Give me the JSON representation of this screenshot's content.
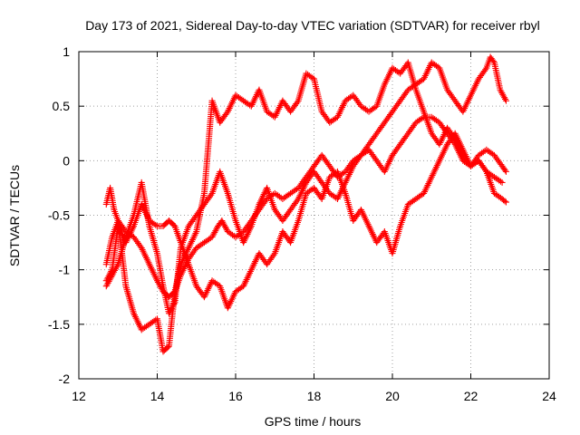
{
  "chart_data": {
    "type": "scatter",
    "title": "Day 173 of 2021, Sidereal Day-to-day VTEC variation (SDTVAR) for receiver rbyl",
    "xlabel": "GPS time / hours",
    "ylabel": "SDTVAR / TECUs",
    "xlim": [
      12,
      24
    ],
    "ylim": [
      -2,
      1
    ],
    "xticks": [
      12,
      14,
      16,
      18,
      20,
      22,
      24
    ],
    "yticks": [
      -2,
      -1.5,
      -1,
      -0.5,
      0,
      0.5,
      1
    ],
    "xtick_labels": [
      "12",
      "14",
      "16",
      "18",
      "20",
      "22",
      "24"
    ],
    "ytick_labels": [
      "-2",
      "-1.5",
      "-1",
      "-0.5",
      "0",
      "0.5",
      "1"
    ],
    "grid": true,
    "marker": "+",
    "color": "#ff0000",
    "series": [
      {
        "x": [
          12.7,
          12.85,
          13.0,
          13.2,
          13.4,
          13.6,
          13.8,
          14.0,
          14.15,
          14.3,
          14.45,
          14.6,
          14.8,
          15.0,
          15.2,
          15.4,
          15.55,
          15.65,
          15.8,
          16.0,
          16.2,
          16.4,
          16.6,
          16.8,
          17.0,
          17.2,
          17.4,
          17.6,
          17.8,
          18.0,
          18.2,
          18.4,
          18.6,
          18.8,
          19.0,
          19.2,
          19.4,
          19.6,
          19.8,
          20.0,
          20.2,
          20.4,
          20.6,
          20.8,
          21.0,
          21.2,
          21.4,
          21.6,
          21.8,
          22.0,
          22.2,
          22.4,
          22.5,
          22.6,
          22.75,
          22.9
        ],
        "y": [
          -0.95,
          -0.7,
          -0.55,
          -0.65,
          -0.7,
          -0.8,
          -0.95,
          -1.1,
          -1.2,
          -1.25,
          -1.2,
          -1.05,
          -0.9,
          -0.8,
          -0.75,
          -0.7,
          -0.6,
          -0.55,
          -0.65,
          -0.7,
          -0.65,
          -0.55,
          -0.45,
          -0.35,
          -0.3,
          -0.35,
          -0.3,
          -0.25,
          -0.15,
          -0.05,
          0.05,
          -0.05,
          -0.15,
          -0.1,
          0.0,
          0.05,
          0.15,
          0.25,
          0.35,
          0.45,
          0.55,
          0.65,
          0.7,
          0.75,
          0.9,
          0.85,
          0.65,
          0.55,
          0.45,
          0.6,
          0.75,
          0.85,
          0.95,
          0.9,
          0.65,
          0.55
        ]
      },
      {
        "x": [
          12.7,
          12.85,
          13.0,
          13.2,
          13.4,
          13.6,
          13.8,
          14.0,
          14.15,
          14.3,
          14.45,
          14.6,
          14.8,
          15.0,
          15.2,
          15.4,
          15.6,
          15.8,
          16.0,
          16.2,
          16.4,
          16.6,
          16.8,
          17.0,
          17.2,
          17.4,
          17.6,
          17.8,
          18.0,
          18.2,
          18.4,
          18.6,
          18.8,
          19.0,
          19.2,
          19.4,
          19.6,
          19.8,
          20.0,
          20.2,
          20.4,
          20.6,
          20.8,
          21.0,
          21.2,
          21.4,
          21.6,
          21.8,
          22.0,
          22.2,
          22.4,
          22.6,
          22.8,
          22.9
        ],
        "y": [
          -1.15,
          -1.05,
          -0.95,
          -0.7,
          -0.5,
          -0.2,
          -0.6,
          -0.85,
          -1.15,
          -1.4,
          -1.3,
          -0.8,
          -0.6,
          -0.5,
          -0.4,
          -0.3,
          -0.1,
          -0.3,
          -0.55,
          -0.75,
          -0.6,
          -0.4,
          -0.25,
          -0.45,
          -0.55,
          -0.45,
          -0.35,
          -0.2,
          -0.1,
          -0.2,
          -0.3,
          -0.35,
          -0.2,
          -0.05,
          0.05,
          0.1,
          0.0,
          -0.1,
          0.05,
          0.15,
          0.25,
          0.35,
          0.4,
          0.4,
          0.35,
          0.25,
          0.15,
          0.0,
          -0.05,
          0.05,
          0.1,
          0.05,
          -0.05,
          -0.1
        ]
      },
      {
        "x": [
          12.7,
          12.8,
          12.9,
          13.0,
          13.2,
          13.4,
          13.6,
          13.8,
          14.0,
          14.15,
          14.3,
          14.45,
          14.6,
          14.8,
          15.0,
          15.2,
          15.4,
          15.6,
          15.8,
          16.0,
          16.2,
          16.4,
          16.6,
          16.8,
          17.0,
          17.2,
          17.4,
          17.6,
          17.8,
          18.0,
          18.2,
          18.4,
          18.6,
          18.8,
          19.0,
          19.2,
          19.4,
          19.6,
          19.8,
          20.0,
          20.2,
          20.4,
          20.6,
          20.8,
          21.0,
          21.2,
          21.4,
          21.6,
          21.8,
          22.0,
          22.2,
          22.4,
          22.6,
          22.8
        ],
        "y": [
          -0.4,
          -0.25,
          -0.45,
          -0.55,
          -1.15,
          -1.4,
          -1.55,
          -1.5,
          -1.45,
          -1.75,
          -1.7,
          -1.2,
          -0.95,
          -0.8,
          -0.65,
          -0.3,
          0.55,
          0.35,
          0.45,
          0.6,
          0.55,
          0.5,
          0.65,
          0.45,
          0.4,
          0.55,
          0.45,
          0.55,
          0.8,
          0.75,
          0.45,
          0.35,
          0.4,
          0.55,
          0.6,
          0.5,
          0.45,
          0.5,
          0.7,
          0.85,
          0.8,
          0.9,
          0.65,
          0.45,
          0.25,
          0.15,
          0.3,
          0.2,
          0.05,
          -0.05,
          0.0,
          -0.1,
          -0.15,
          -0.2
        ]
      },
      {
        "x": [
          12.7,
          12.85,
          13.0,
          13.2,
          13.4,
          13.6,
          13.8,
          14.0,
          14.15,
          14.3,
          14.45,
          14.6,
          14.8,
          15.0,
          15.2,
          15.4,
          15.6,
          15.8,
          16.0,
          16.2,
          16.4,
          16.6,
          16.8,
          17.0,
          17.2,
          17.4,
          17.6,
          17.8,
          18.0,
          18.2,
          18.4,
          18.6,
          18.8,
          19.0,
          19.2,
          19.4,
          19.6,
          19.8,
          20.0,
          20.2,
          20.4,
          20.6,
          20.8,
          21.0,
          21.2,
          21.4,
          21.6,
          21.8,
          22.0,
          22.2,
          22.4,
          22.6,
          22.8,
          22.9
        ],
        "y": [
          -1.1,
          -1.0,
          -0.6,
          -0.75,
          -0.6,
          -0.4,
          -0.55,
          -0.6,
          -0.6,
          -0.55,
          -0.6,
          -0.75,
          -0.95,
          -1.15,
          -1.25,
          -1.1,
          -1.15,
          -1.35,
          -1.2,
          -1.15,
          -1.0,
          -0.85,
          -0.95,
          -0.85,
          -0.65,
          -0.75,
          -0.55,
          -0.3,
          -0.25,
          -0.35,
          -0.15,
          -0.1,
          -0.3,
          -0.55,
          -0.45,
          -0.6,
          -0.75,
          -0.65,
          -0.85,
          -0.6,
          -0.4,
          -0.35,
          -0.3,
          -0.15,
          0.0,
          0.15,
          0.25,
          0.1,
          -0.05,
          0.0,
          -0.1,
          -0.3,
          -0.35,
          -0.38
        ]
      }
    ]
  }
}
